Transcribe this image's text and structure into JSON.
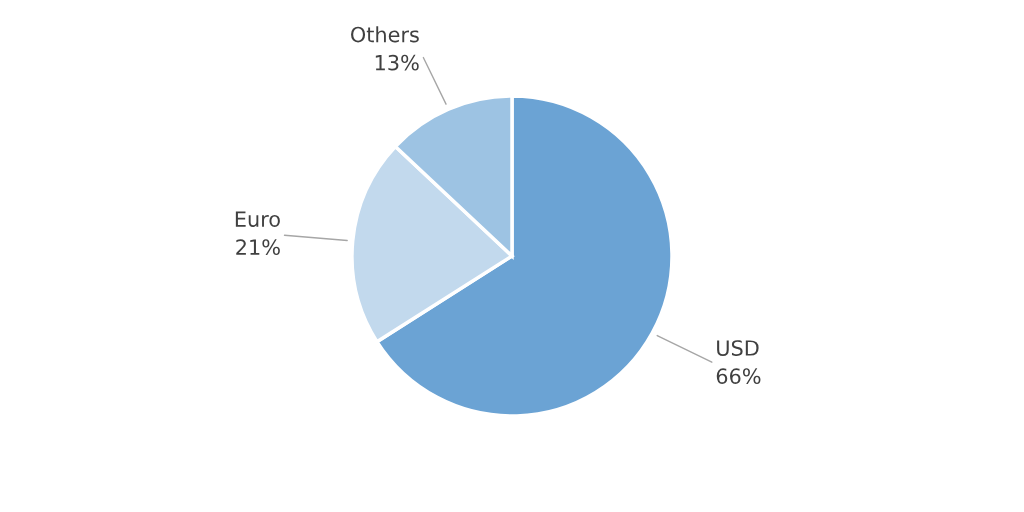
{
  "chart_data": {
    "type": "pie",
    "categories": [
      "USD",
      "Euro",
      "Others"
    ],
    "values": [
      66,
      21,
      13
    ],
    "value_labels": [
      "66%",
      "21%",
      "13%"
    ],
    "colors": [
      "#6ba3d4",
      "#c2d9ed",
      "#9dc3e3"
    ],
    "legend": false
  }
}
